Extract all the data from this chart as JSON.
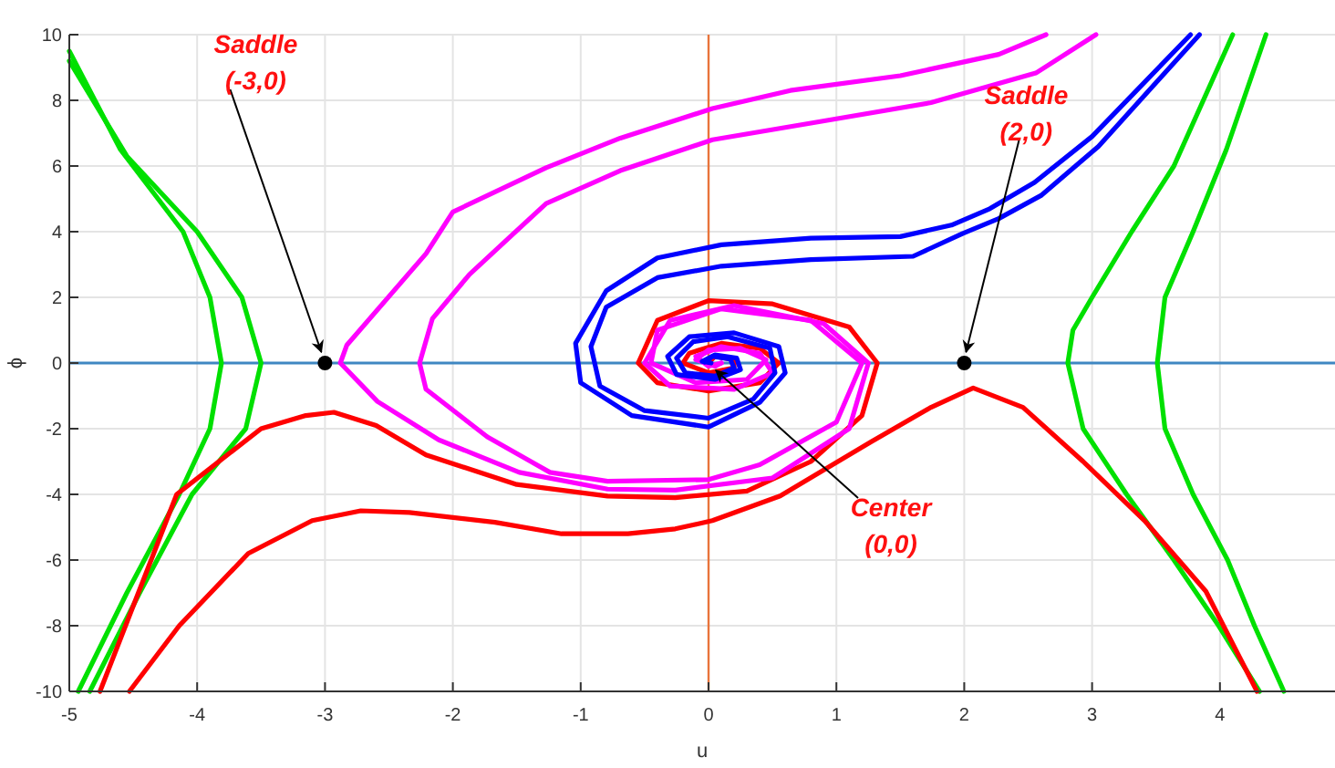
{
  "chart_data": {
    "type": "line",
    "xlabel": "u",
    "ylabel": "ϕ",
    "xlim": [
      -5,
      4.9
    ],
    "ylim": [
      -10,
      10
    ],
    "xticks": [
      -5,
      -4,
      -3,
      -2,
      -1,
      0,
      1,
      2,
      3,
      4
    ],
    "yticks": [
      -10,
      -8,
      -6,
      -4,
      -2,
      0,
      2,
      4,
      6,
      8,
      10
    ],
    "grid": true,
    "line_style": "solid",
    "marker": "none",
    "series": [
      {
        "type": "line",
        "color": "#00e000",
        "x": [
          -5,
          -4.6,
          -4.11,
          -3.9,
          -3.81,
          -3.9,
          -4.14,
          -4.55,
          -4.93
        ],
        "values": [
          9.5,
          6.5,
          4,
          2,
          0,
          -2,
          -4,
          -7,
          -10
        ]
      },
      {
        "type": "line",
        "color": "#00e000",
        "x": [
          -5,
          -4.55,
          -4.0,
          -3.65,
          -3.5,
          -3.62,
          -4.04,
          -4.45,
          -4.84
        ],
        "values": [
          9.2,
          6.3,
          4,
          2,
          0,
          -2,
          -4,
          -7,
          -10
        ]
      },
      {
        "type": "line",
        "color": "#00e000",
        "x": [
          4.1,
          3.64,
          3.31,
          3.0,
          2.85,
          2.81,
          2.93,
          3.27,
          3.64,
          3.99,
          4.31
        ],
        "values": [
          10,
          6,
          4,
          2,
          1,
          0,
          -2,
          -4,
          -6,
          -8,
          -10
        ]
      },
      {
        "type": "line",
        "color": "#00e000",
        "x": [
          4.36,
          4.05,
          3.79,
          3.57,
          3.51,
          3.57,
          3.79,
          4.06,
          4.27,
          4.5
        ],
        "values": [
          10,
          6.5,
          4,
          2,
          0,
          -2,
          -4,
          -6,
          -8,
          -10
        ]
      },
      {
        "type": "line",
        "color": "#ff0000",
        "x": [
          -4.76,
          -4.16,
          -3.5,
          -3.15,
          -2.93,
          -2.6,
          -2.21,
          -1.5,
          -0.79,
          -0.26,
          0.3,
          0.8,
          1.2,
          1.32,
          1.1,
          0.5,
          0,
          -0.4,
          -0.55,
          -0.4,
          0,
          0.4,
          0.55,
          0.4,
          0.1,
          -0.15,
          -0.2,
          0,
          0.2,
          0.2,
          0.05,
          0
        ],
        "values": [
          -10,
          -4,
          -2,
          -1.6,
          -1.5,
          -1.9,
          -2.8,
          -3.7,
          -4.05,
          -4.1,
          -3.9,
          -3.0,
          -1.6,
          0,
          1.1,
          1.8,
          1.9,
          1.3,
          0,
          -0.6,
          -0.85,
          -0.6,
          0,
          0.45,
          0.6,
          0.3,
          0,
          -0.3,
          -0.15,
          0.1,
          0.2,
          0
        ]
      },
      {
        "type": "line",
        "color": "#ff0000",
        "x": [
          -4.53,
          -4.14,
          -3.6,
          -3.1,
          -2.72,
          -2.34,
          -1.67,
          -1.15,
          -0.63,
          -0.26,
          0.03,
          0.56,
          1.27,
          1.74,
          2.07,
          2.46,
          2.93,
          3.41,
          3.89,
          4.29
        ],
        "values": [
          -10,
          -8,
          -5.8,
          -4.8,
          -4.5,
          -4.55,
          -4.85,
          -5.2,
          -5.2,
          -5.05,
          -4.8,
          -4.05,
          -2.4,
          -1.35,
          -0.76,
          -1.35,
          -3.0,
          -4.8,
          -6.95,
          -10
        ]
      },
      {
        "type": "line",
        "color": "#ff00ff",
        "x": [
          2.64,
          2.27,
          1.5,
          0.64,
          0.03,
          -0.69,
          -1.27,
          -2.0,
          -2.21,
          -2.83,
          -2.88,
          -2.59,
          -2.11,
          -1.48,
          -0.79,
          -0.26,
          0.5,
          1.1,
          1.25,
          0.9,
          0.2,
          -0.3,
          -0.5,
          -0.3,
          0.2,
          0.5,
          0.4,
          0.1,
          -0.1,
          0,
          0.1
        ],
        "values": [
          10,
          9.4,
          8.75,
          8.3,
          7.75,
          6.85,
          5.95,
          4.6,
          3.33,
          0.54,
          0,
          -1.17,
          -2.34,
          -3.33,
          -3.84,
          -3.87,
          -3.5,
          -2,
          0,
          1.2,
          1.75,
          1.3,
          0,
          -0.7,
          -0.8,
          -0.3,
          0.3,
          0.5,
          0.2,
          -0.1,
          0
        ]
      },
      {
        "type": "line",
        "color": "#ff00ff",
        "x": [
          3.03,
          2.56,
          1.74,
          0.79,
          0.03,
          -0.69,
          -1.27,
          -1.87,
          -2.16,
          -2.26,
          -2.21,
          -1.73,
          -1.24,
          -0.79,
          0,
          0.4,
          1.0,
          1.2,
          0.8,
          0.1,
          -0.4,
          -0.45,
          -0.1,
          0.3,
          0.45,
          0.25,
          0,
          -0.1,
          0.05,
          0.1
        ],
        "values": [
          10,
          8.83,
          7.93,
          7.3,
          6.8,
          5.86,
          4.86,
          2.7,
          1.35,
          0,
          -0.8,
          -2.25,
          -3.33,
          -3.6,
          -3.55,
          -3.1,
          -1.8,
          0,
          1.3,
          1.65,
          1.0,
          0,
          -0.6,
          -0.5,
          0.1,
          0.45,
          0.4,
          0.1,
          -0.1,
          0
        ]
      },
      {
        "type": "line",
        "color": "#0000ff",
        "x": [
          3.77,
          3.0,
          2.55,
          2.2,
          1.9,
          1.5,
          0.8,
          0.1,
          -0.4,
          -0.8,
          -1.04,
          -1.0,
          -0.6,
          0,
          0.4,
          0.6,
          0.55,
          0.2,
          -0.15,
          -0.32,
          -0.25,
          0.05,
          0.25,
          0.22,
          0.05,
          -0.05,
          0.02
        ],
        "values": [
          10,
          6.9,
          5.5,
          4.7,
          4.2,
          3.85,
          3.8,
          3.6,
          3.2,
          2.2,
          0.6,
          -0.6,
          -1.6,
          -1.95,
          -1.2,
          -0.3,
          0.5,
          0.92,
          0.8,
          0.2,
          -0.35,
          -0.5,
          -0.2,
          0.15,
          0.25,
          0.05,
          0
        ]
      },
      {
        "type": "line",
        "color": "#0000ff",
        "x": [
          3.84,
          3.05,
          2.6,
          2.27,
          1.99,
          1.6,
          0.8,
          0.1,
          -0.4,
          -0.8,
          -0.92,
          -0.85,
          -0.5,
          0,
          0.35,
          0.52,
          0.48,
          0.15,
          -0.12,
          -0.25,
          -0.18,
          0.05,
          0.2,
          0.17,
          0.03,
          -0.03
        ],
        "values": [
          10,
          6.6,
          5.1,
          4.4,
          3.95,
          3.25,
          3.15,
          2.95,
          2.6,
          1.7,
          0.5,
          -0.7,
          -1.45,
          -1.68,
          -1.1,
          -0.3,
          0.45,
          0.8,
          0.65,
          0.15,
          -0.3,
          -0.4,
          -0.15,
          0.12,
          0.2,
          0.03
        ]
      },
      {
        "type": "scatter",
        "color": "#000000",
        "marker": "circle",
        "x": [
          -3,
          2
        ],
        "values": [
          0,
          0
        ]
      }
    ],
    "ref_lines": [
      {
        "axis": "y",
        "value": 0,
        "color": "#3f87c2"
      },
      {
        "axis": "x",
        "value": 0,
        "color": "#e8743b"
      }
    ],
    "annotations": [
      {
        "text": "Saddle\n(-3,0)",
        "x": -3,
        "y": 0
      },
      {
        "text": "Saddle\n(2,0)",
        "x": 2,
        "y": 0
      },
      {
        "text": "Center\n(0,0)",
        "x": 0,
        "y": 0
      }
    ]
  }
}
